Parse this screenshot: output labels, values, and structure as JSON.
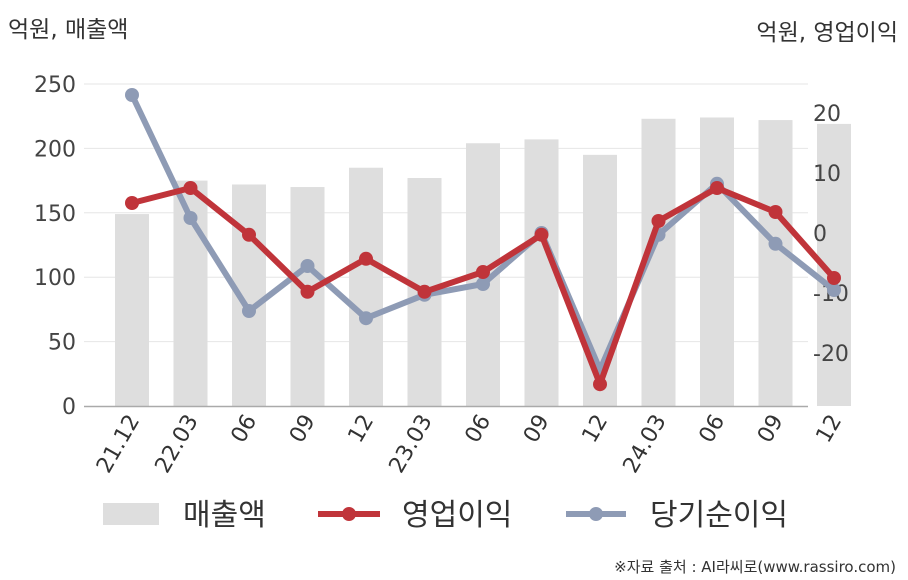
{
  "chart_data": {
    "type": "bar+line",
    "left_unit_label": "억원, 매출액",
    "right_unit_label": "억원, 영업이익",
    "categories": [
      "21.12",
      "22.03",
      "06",
      "09",
      "12",
      "23.03",
      "06",
      "09",
      "12",
      "24.03",
      "06",
      "09",
      "12"
    ],
    "bar_series": {
      "name": "매출액",
      "axis": "left",
      "color": "#dedede",
      "values": [
        149,
        175,
        172,
        170,
        185,
        177,
        204,
        207,
        195,
        223,
        224,
        222,
        219
      ]
    },
    "line_series": [
      {
        "name": "영업이익",
        "axis": "right",
        "color": "#c0343a",
        "values": [
          5.0,
          7.5,
          -0.3,
          -9.8,
          -4.3,
          -9.8,
          -6.5,
          -0.3,
          -25.2,
          2.0,
          7.5,
          3.5,
          -7.5
        ]
      },
      {
        "name": "당기순이익",
        "axis": "right",
        "color": "#8e9bb5",
        "values": [
          23.0,
          2.5,
          -13.0,
          -5.5,
          -14.2,
          -10.3,
          -8.5,
          0.0,
          -22.8,
          -0.3,
          8.2,
          -1.8,
          -9.5
        ]
      }
    ],
    "left_axis": {
      "ylim": [
        0,
        250
      ],
      "ticks": [
        "0",
        "50",
        "100",
        "150",
        "200",
        "250"
      ]
    },
    "right_axis": {
      "ylim": [
        -30,
        25
      ],
      "ticks": [
        "-20",
        "-10",
        "0",
        "10",
        "20"
      ]
    },
    "grid": true,
    "legend_placement": "bottom",
    "source_note": "※자료 출처 : AI라씨로(www.rassiro.com)"
  }
}
